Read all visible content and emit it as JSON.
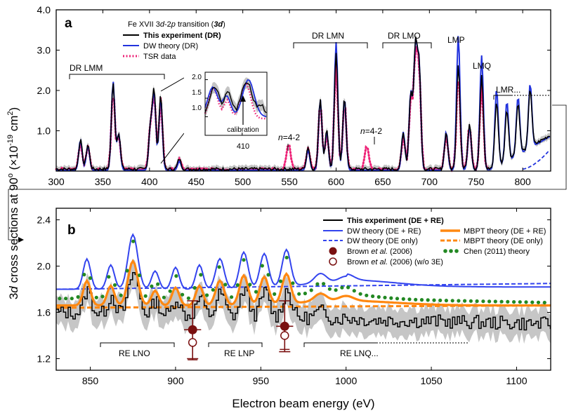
{
  "figure": {
    "ylabel_prefix": "3",
    "ylabel_italic": "d",
    "ylabel_main": " cross sections at 90",
    "ylabel_deg": "o",
    "ylabel_units": " (×10",
    "ylabel_exp": "-19",
    "ylabel_units2": " cm",
    "ylabel_sq": "2",
    "ylabel_close": ")",
    "xlabel": "Electron beam energy (eV)"
  },
  "panel_a": {
    "letter": "a",
    "legend_title_1": "Fe XVII 3",
    "legend_title_2": "d",
    "legend_title_3": "-2",
    "legend_title_4": "p",
    "legend_title_5": " transition (",
    "legend_title_6": "3d",
    "legend_title_7": ")",
    "legend": [
      {
        "label": "This experiment (DR)",
        "color": "#000000",
        "style": "solid",
        "bold": true
      },
      {
        "label": "DW theory (DR)",
        "color": "#2233dd",
        "style": "solid",
        "bold": false
      },
      {
        "label": "TSR data",
        "color": "#ee2277",
        "style": "dotted",
        "bold": false
      }
    ],
    "annotations": {
      "dr_lmm": "DR LMM",
      "dr_lmn": "DR LMN",
      "dr_lmo": "DR LMO",
      "lmp": "LMP",
      "lmq": "LMQ",
      "lmr": "LMR...",
      "n42_a_n": "n",
      "n42_a_rest": "=4-2",
      "n42_b_n": "n",
      "n42_b_rest": "=4-2"
    },
    "inset": {
      "calibration": "calibration",
      "xtick": "410",
      "yticks": [
        "2.0",
        "1.5",
        "1.0"
      ]
    }
  },
  "panel_b": {
    "letter": "b",
    "legend": [
      {
        "label": "This experiment (DE + RE)",
        "color": "#000000",
        "style": "solid",
        "bold": true
      },
      {
        "label": "DW theory (DE + RE)",
        "color": "#3344ee",
        "style": "solid"
      },
      {
        "label": "DW theory (DE only)",
        "color": "#3344ee",
        "style": "dashed"
      },
      {
        "label": "MBPT theory (DE + RE)",
        "color": "#ff8811",
        "style": "solid"
      },
      {
        "label": "MBPT theory (DE only)",
        "color": "#ff8811",
        "style": "dashed"
      },
      {
        "label": "Chen (2011) theory",
        "color": "#228822",
        "style": "dotted"
      }
    ],
    "brown_1a": "Brown ",
    "brown_1b": "et al.",
    "brown_1c": " (2006)",
    "brown_2a": "Brown ",
    "brown_2b": "et al.",
    "brown_2c": " (2006) (w/o 3E)",
    "annotations": {
      "re_lno": "RE LNO",
      "re_lnp": "RE LNP",
      "re_lnq": "RE LNQ..."
    }
  },
  "chart_data": [
    {
      "type": "line",
      "panel": "a",
      "xlim": [
        300,
        830
      ],
      "ylim": [
        0,
        4.0
      ],
      "xticks": [
        300,
        350,
        400,
        450,
        500,
        550,
        600,
        650,
        700,
        750,
        800
      ],
      "yticks": [
        1.0,
        2.0,
        3.0,
        4.0
      ],
      "peaks": [
        {
          "x": 326,
          "exp": 0.72,
          "dw": 0.75
        },
        {
          "x": 334,
          "exp": 0.6,
          "dw": 0.6
        },
        {
          "x": 361,
          "exp": 2.12,
          "dw": 2.2
        },
        {
          "x": 367,
          "exp": 0.9,
          "dw": 0.9
        },
        {
          "x": 401,
          "exp": 1.05,
          "dw": 1.05
        },
        {
          "x": 405,
          "exp": 1.9,
          "dw": 1.85
        },
        {
          "x": 412,
          "exp": 1.85,
          "dw": 1.8
        },
        {
          "x": 432,
          "exp": 0.25,
          "dw": 0.22
        },
        {
          "x": 570,
          "exp": 0.55,
          "dw": 0.5
        },
        {
          "x": 583,
          "exp": 1.75,
          "dw": 1.75
        },
        {
          "x": 590,
          "exp": 0.95,
          "dw": 0.95
        },
        {
          "x": 600,
          "exp": 2.9,
          "dw": 3.18
        },
        {
          "x": 609,
          "exp": 1.78,
          "dw": 1.78
        },
        {
          "x": 672,
          "exp": 0.9,
          "dw": 0.95
        },
        {
          "x": 680,
          "exp": 1.85,
          "dw": 1.9
        },
        {
          "x": 685,
          "exp": 2.95,
          "dw": 2.95
        },
        {
          "x": 689,
          "exp": 2.55,
          "dw": 2.55
        },
        {
          "x": 718,
          "exp": 0.9,
          "dw": 0.95
        },
        {
          "x": 731,
          "exp": 2.6,
          "dw": 3.35
        },
        {
          "x": 743,
          "exp": 1.15,
          "dw": 1.1
        },
        {
          "x": 756,
          "exp": 2.3,
          "dw": 2.85
        },
        {
          "x": 772,
          "exp": 1.6,
          "dw": 1.95
        },
        {
          "x": 783,
          "exp": 1.25,
          "dw": 1.5
        },
        {
          "x": 795,
          "exp": 1.25,
          "dw": 1.45
        },
        {
          "x": 808,
          "exp": 1.45,
          "dw": 1.6
        }
      ],
      "tsr_extra_peaks": [
        {
          "x": 549,
          "y": 0.65
        },
        {
          "x": 633,
          "y": 0.6
        }
      ]
    },
    {
      "type": "line",
      "panel": "b",
      "xlim": [
        830,
        1120
      ],
      "ylim": [
        1.1,
        2.5
      ],
      "xticks": [
        850,
        900,
        950,
        1000,
        1050,
        1100
      ],
      "yticks": [
        1.2,
        1.6,
        2.0,
        2.4
      ],
      "dw_de_only": 1.8,
      "mbpt_de_only": 1.64,
      "brown_2006": [
        {
          "x": 910,
          "y": 1.45,
          "yerr": 0.25,
          "xerr": 5
        },
        {
          "x": 964,
          "y": 1.48,
          "yerr": 0.22,
          "xerr": 5
        }
      ],
      "brown_2006_wo3e": [
        {
          "x": 910,
          "y": 1.34,
          "yerr": 0.15
        },
        {
          "x": 964,
          "y": 1.4,
          "yerr": 0.12
        }
      ]
    }
  ]
}
